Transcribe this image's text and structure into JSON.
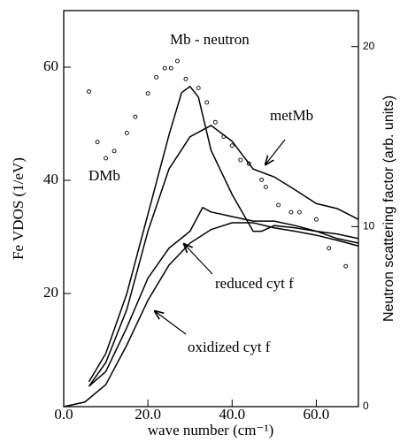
{
  "chart_data": {
    "type": "line",
    "xlabel": "wave number (cm⁻¹)",
    "ylabel": "Fe VDOS (1/eV)",
    "y2label": "Neutron scattering factor (arb. units)",
    "xlim": [
      0,
      70
    ],
    "ylim": [
      0,
      70
    ],
    "y2lim": [
      0,
      22
    ],
    "xticks": [
      {
        "value": 0,
        "label": "0.0"
      },
      {
        "value": 20,
        "label": "20.0"
      },
      {
        "value": 40,
        "label": "40.0"
      },
      {
        "value": 60,
        "label": "60.0"
      }
    ],
    "yticks": [
      20,
      40,
      60
    ],
    "y2ticks": [
      0,
      10,
      20
    ],
    "series": [
      {
        "name": "DMb",
        "color": "#000000",
        "x": [
          6,
          10,
          15,
          20,
          25,
          28,
          30,
          32,
          35,
          40,
          45,
          47,
          50,
          55,
          60,
          65,
          70
        ],
        "values": [
          4.4,
          9.4,
          20,
          34,
          48,
          55.5,
          56.6,
          54.7,
          45.3,
          37.5,
          31,
          31,
          32,
          31.6,
          31,
          29.7,
          28.9
        ]
      },
      {
        "name": "metMb",
        "color": "#000000",
        "x": [
          6,
          10,
          15,
          20,
          25,
          30,
          35,
          40,
          45,
          50,
          55,
          60,
          65,
          70
        ],
        "values": [
          3.6,
          7.8,
          17.2,
          31,
          42,
          47.7,
          49.7,
          46.9,
          42,
          40.6,
          38.3,
          35.9,
          35,
          33.1
        ]
      },
      {
        "name": "reduced cyt f",
        "color": "#000000",
        "x": [
          6,
          10,
          15,
          20,
          25,
          30,
          33,
          35,
          40,
          45,
          50,
          55,
          60,
          65,
          70
        ],
        "values": [
          3.6,
          6.2,
          14,
          22.7,
          28,
          31,
          35.2,
          34.4,
          33.6,
          32.8,
          32.8,
          32,
          31,
          30.5,
          29.7
        ]
      },
      {
        "name": "oxidized cyt f",
        "color": "#000000",
        "x": [
          0,
          5,
          10,
          15,
          20,
          25,
          30,
          35,
          40,
          45,
          50,
          55,
          60,
          65,
          70
        ],
        "values": [
          0,
          0.8,
          3.9,
          10.9,
          18.8,
          25,
          28.9,
          31.3,
          32.5,
          32.5,
          31.6,
          31,
          30.3,
          29.4,
          28.4
        ]
      },
      {
        "name": "Mb - neutron",
        "color": "#000000",
        "axis": "y2",
        "marker": "circle",
        "x": [
          6,
          8,
          10,
          12,
          15,
          17,
          20,
          22,
          24,
          25.5,
          27,
          29,
          32,
          34,
          36,
          38,
          40,
          42,
          44,
          47,
          48,
          51,
          54,
          56,
          60,
          63,
          67
        ],
        "values": [
          17.5,
          14.7,
          13.8,
          14.2,
          15.2,
          16.1,
          17.4,
          18.3,
          18.8,
          18.8,
          19.2,
          18.2,
          17.7,
          16.9,
          15.8,
          15.0,
          14.5,
          13.7,
          13.5,
          12.6,
          12.2,
          11.2,
          10.8,
          10.8,
          10.4,
          8.8,
          7.8
        ]
      }
    ]
  }
}
